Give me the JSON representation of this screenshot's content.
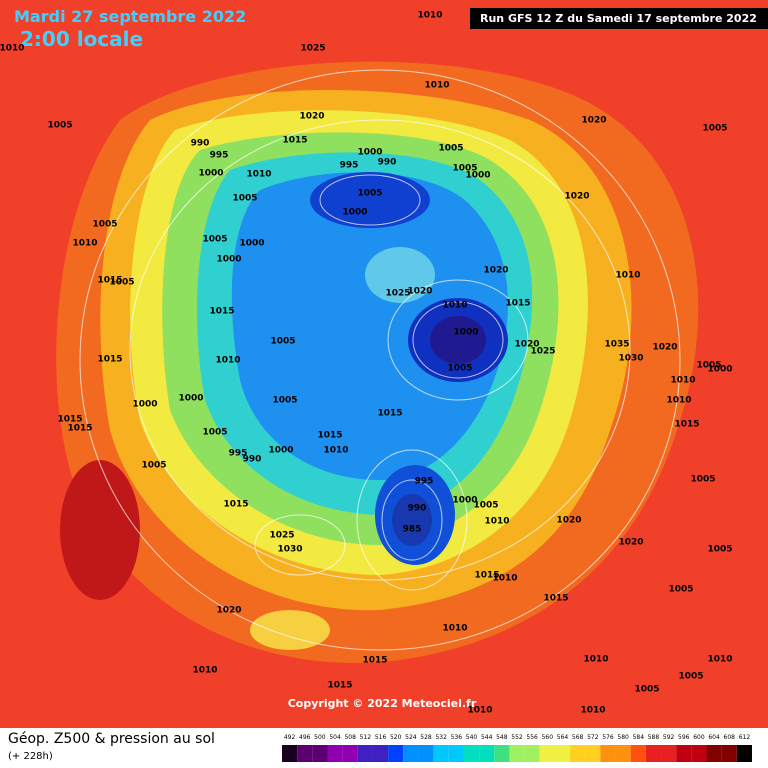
{
  "header": {
    "date": "Mardi 27 septembre 2022",
    "time": "2:00 locale",
    "run": "Run GFS 12 Z du Samedi 17 septembre 2022"
  },
  "copyright": "Copyright © 2022 Meteociel.fr",
  "footer": {
    "title": "Géop. Z500 & pression au sol",
    "lead": "(+ 228h)"
  },
  "color_scale": [
    492,
    496,
    500,
    504,
    508,
    512,
    516,
    520,
    524,
    528,
    532,
    536,
    540,
    544,
    548,
    552,
    556,
    560,
    564,
    568,
    572,
    576,
    580,
    584,
    588,
    592,
    596,
    600,
    604,
    608,
    612
  ],
  "isobar_labels": [
    1010,
    1010,
    1025,
    1010,
    1020,
    1020,
    1005,
    1005,
    990,
    995,
    1015,
    1000,
    990,
    995,
    1005,
    1005,
    1000,
    1000,
    1010,
    1005,
    1005,
    1000,
    1020,
    1005,
    1005,
    1000,
    1010,
    1000,
    1020,
    1010,
    1015,
    1005,
    1025,
    1020,
    1010,
    1015,
    1015,
    1000,
    1005,
    1035,
    1020,
    1020,
    1025,
    1030,
    1005,
    1000,
    1005,
    1010,
    1015,
    1010,
    1000,
    1000,
    1005,
    1010,
    1015,
    1015,
    1015,
    1015,
    1005,
    1015,
    995,
    990,
    1000,
    1010,
    1005,
    1005,
    995,
    1005,
    1000,
    1015,
    990,
    1010,
    1020,
    985,
    1025,
    1020,
    1030,
    1005,
    1010,
    1015,
    1005,
    1015,
    1020,
    1010,
    1015,
    1010,
    1010,
    1010,
    1015,
    1005,
    1005,
    1010,
    1010
  ]
}
